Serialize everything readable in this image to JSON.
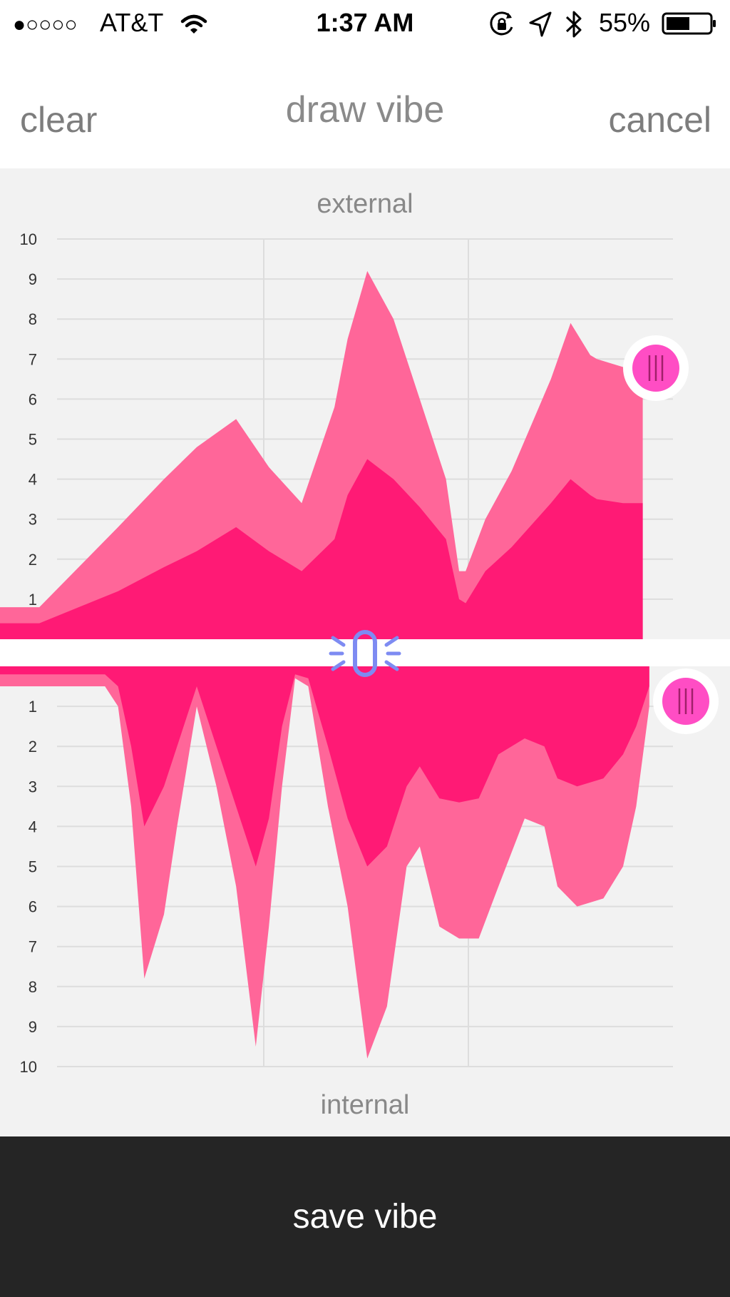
{
  "status_bar": {
    "signal_dots": "●○○○○",
    "carrier": "AT&T",
    "time": "1:37 AM",
    "battery": "55%",
    "icons": [
      "wifi-icon",
      "orientation-lock-icon",
      "location-arrow-icon",
      "bluetooth-icon",
      "battery-icon"
    ]
  },
  "nav": {
    "clear_label": "clear",
    "title": "draw vibe",
    "cancel_label": "cancel"
  },
  "colors": {
    "background": "#f2f2f2",
    "grid": "#dddddd",
    "light_pink": "#ff6699",
    "hot_pink": "#ff1a75",
    "handle": "#ff4dc4",
    "link_icon": "#7e8bf2",
    "save_bar": "#252525"
  },
  "editor": {
    "link_icon": "link-icon",
    "handle_icon": "handle-grip-icon"
  },
  "chart_data": [
    {
      "type": "area",
      "title": "external",
      "ylim": [
        0,
        10
      ],
      "ytick_labels": [
        "1",
        "2",
        "3",
        "4",
        "5",
        "6",
        "7",
        "8",
        "9",
        "10"
      ],
      "grid": true,
      "x": [
        0,
        0.06,
        0.12,
        0.18,
        0.25,
        0.3,
        0.36,
        0.41,
        0.46,
        0.51,
        0.53,
        0.56,
        0.6,
        0.64,
        0.68,
        0.7,
        0.71,
        0.74,
        0.78,
        0.84,
        0.87,
        0.9,
        0.91,
        0.95,
        0.98
      ],
      "series": [
        {
          "values": [
            0.8,
            0.8,
            1.8,
            2.8,
            4.0,
            4.8,
            5.5,
            4.3,
            3.4,
            5.8,
            7.5,
            9.2,
            8.0,
            6.0,
            4.0,
            1.7,
            1.7,
            3.0,
            4.2,
            6.5,
            7.9,
            7.1,
            7.0,
            6.8,
            6.8
          ]
        },
        {
          "values": [
            0.4,
            0.4,
            0.8,
            1.2,
            1.8,
            2.2,
            2.8,
            2.2,
            1.7,
            2.5,
            3.6,
            4.5,
            4.0,
            3.3,
            2.5,
            1.0,
            0.9,
            1.7,
            2.3,
            3.4,
            4.0,
            3.6,
            3.5,
            3.4,
            3.4
          ]
        }
      ]
    },
    {
      "type": "area",
      "title": "internal",
      "ylim": [
        0,
        10
      ],
      "ytick_labels": [
        "1",
        "2",
        "3",
        "4",
        "5",
        "6",
        "7",
        "8",
        "9",
        "10"
      ],
      "grid": true,
      "x": [
        0,
        0.16,
        0.18,
        0.2,
        0.22,
        0.25,
        0.27,
        0.3,
        0.33,
        0.36,
        0.39,
        0.41,
        0.43,
        0.45,
        0.47,
        0.5,
        0.53,
        0.56,
        0.59,
        0.62,
        0.64,
        0.67,
        0.7,
        0.73,
        0.76,
        0.8,
        0.83,
        0.85,
        0.88,
        0.92,
        0.95,
        0.97,
        0.99
      ],
      "series": [
        {
          "values": [
            0.5,
            0.5,
            1.0,
            3.5,
            7.8,
            6.2,
            4.0,
            1.0,
            3.0,
            5.5,
            9.5,
            6.5,
            3.0,
            0.3,
            0.5,
            3.5,
            6.0,
            9.8,
            8.5,
            5.0,
            4.5,
            6.5,
            6.8,
            6.8,
            5.5,
            3.8,
            4.0,
            5.5,
            6.0,
            5.8,
            5.0,
            3.5,
            1.0
          ]
        },
        {
          "values": [
            0.2,
            0.2,
            0.5,
            2.0,
            4.0,
            3.0,
            2.0,
            0.5,
            2.0,
            3.5,
            5.0,
            3.8,
            1.5,
            0.2,
            0.3,
            2.0,
            3.8,
            5.0,
            4.5,
            3.0,
            2.5,
            3.3,
            3.4,
            3.3,
            2.2,
            1.8,
            2.0,
            2.8,
            3.0,
            2.8,
            2.2,
            1.5,
            0.5
          ]
        }
      ]
    }
  ],
  "save": {
    "label": "save vibe"
  }
}
